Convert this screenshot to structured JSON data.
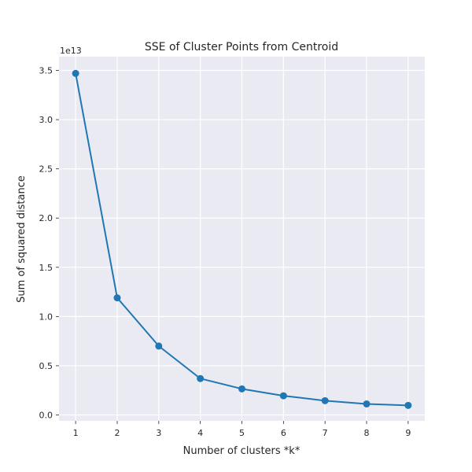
{
  "chart_data": {
    "type": "line",
    "title": "SSE of Cluster Points from Centroid",
    "xlabel": "Number of clusters *k*",
    "ylabel": "Sum of squared distance",
    "y_offset_label": "1e13",
    "y_scale": 10000000000000.0,
    "x": [
      1,
      2,
      3,
      4,
      5,
      6,
      7,
      8,
      9
    ],
    "series": [
      {
        "values": [
          34700000000000.0,
          11900000000000.0,
          7000000000000.0,
          3700000000000.0,
          2650000000000.0,
          1950000000000.0,
          1450000000000.0,
          1120000000000.0,
          970000000000.0
        ]
      }
    ],
    "xlim": [
      0.6,
      9.4
    ],
    "ylim": [
      -600000000000.0,
      36400000000000.0
    ],
    "x_ticks": [
      1,
      2,
      3,
      4,
      5,
      6,
      7,
      8,
      9
    ],
    "x_tick_labels": [
      "1",
      "2",
      "3",
      "4",
      "5",
      "6",
      "7",
      "8",
      "9"
    ],
    "y_ticks": [
      0,
      5000000000000.0,
      10000000000000.0,
      15000000000000.0,
      20000000000000.0,
      25000000000000.0,
      30000000000000.0,
      35000000000000.0
    ],
    "y_tick_labels": [
      "0.0",
      "0.5",
      "1.0",
      "1.5",
      "2.0",
      "2.5",
      "3.0",
      "3.5"
    ],
    "grid": true,
    "colors": {
      "line": "#1f77b4",
      "plot_background": "#eaeaf2",
      "grid": "#ffffff"
    }
  }
}
